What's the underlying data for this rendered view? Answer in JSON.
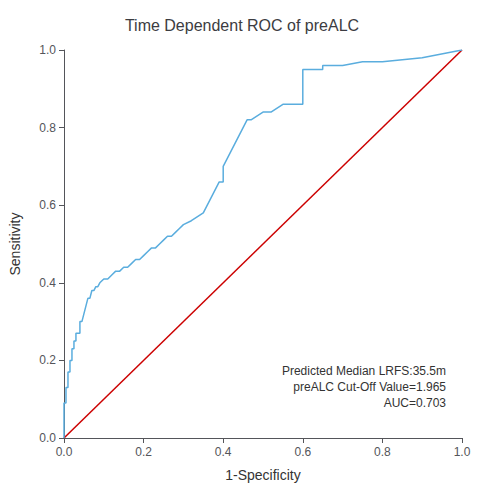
{
  "chart_data": {
    "type": "line",
    "title": "Time Dependent ROC of preALC",
    "xlabel": "1-Specificity",
    "ylabel": "Sensitivity",
    "annotations": [
      "Predicted Median LRFS:35.5m",
      "preALC Cut-Off Value=1.965",
      "AUC=0.703"
    ],
    "xlim": [
      0.0,
      1.0
    ],
    "ylim": [
      0.0,
      1.0
    ],
    "xticks": [
      {
        "value": 0.0,
        "label": "0.0"
      },
      0.2,
      0.4,
      0.6,
      0.8,
      {
        "value": 1.0,
        "label": "1.0"
      }
    ],
    "yticks": [
      {
        "value": 0.0,
        "label": "0.0"
      },
      0.2,
      0.4,
      0.6,
      0.8,
      {
        "value": 1.0,
        "label": "1.0"
      }
    ],
    "grid": false,
    "series": [
      {
        "color": "#cc0000",
        "x": [
          0,
          1
        ],
        "values": [
          0,
          1
        ]
      },
      {
        "color": "#5aadde",
        "x": [
          0.0,
          0.0,
          0.005,
          0.005,
          0.01,
          0.01,
          0.015,
          0.015,
          0.02,
          0.02,
          0.025,
          0.025,
          0.03,
          0.03,
          0.035,
          0.04,
          0.04,
          0.045,
          0.05,
          0.055,
          0.06,
          0.065,
          0.07,
          0.075,
          0.08,
          0.085,
          0.09,
          0.1,
          0.11,
          0.12,
          0.13,
          0.14,
          0.15,
          0.16,
          0.17,
          0.18,
          0.19,
          0.2,
          0.21,
          0.22,
          0.23,
          0.24,
          0.25,
          0.26,
          0.27,
          0.28,
          0.29,
          0.3,
          0.32,
          0.35,
          0.36,
          0.37,
          0.38,
          0.39,
          0.4,
          0.4,
          0.41,
          0.42,
          0.43,
          0.44,
          0.45,
          0.46,
          0.47,
          0.5,
          0.52,
          0.55,
          0.58,
          0.6,
          0.6,
          0.62,
          0.65,
          0.65,
          0.7,
          0.75,
          0.8,
          0.9,
          1.0
        ],
        "values": [
          0.0,
          0.09,
          0.09,
          0.13,
          0.13,
          0.17,
          0.17,
          0.2,
          0.2,
          0.23,
          0.23,
          0.25,
          0.25,
          0.27,
          0.27,
          0.27,
          0.3,
          0.3,
          0.32,
          0.34,
          0.36,
          0.36,
          0.38,
          0.38,
          0.39,
          0.39,
          0.4,
          0.41,
          0.41,
          0.42,
          0.43,
          0.43,
          0.44,
          0.44,
          0.45,
          0.46,
          0.46,
          0.47,
          0.48,
          0.49,
          0.49,
          0.5,
          0.51,
          0.52,
          0.52,
          0.53,
          0.54,
          0.55,
          0.56,
          0.58,
          0.6,
          0.62,
          0.64,
          0.66,
          0.66,
          0.7,
          0.72,
          0.74,
          0.76,
          0.78,
          0.8,
          0.82,
          0.82,
          0.84,
          0.84,
          0.86,
          0.86,
          0.86,
          0.95,
          0.95,
          0.95,
          0.96,
          0.96,
          0.97,
          0.97,
          0.98,
          1.0
        ]
      }
    ]
  }
}
